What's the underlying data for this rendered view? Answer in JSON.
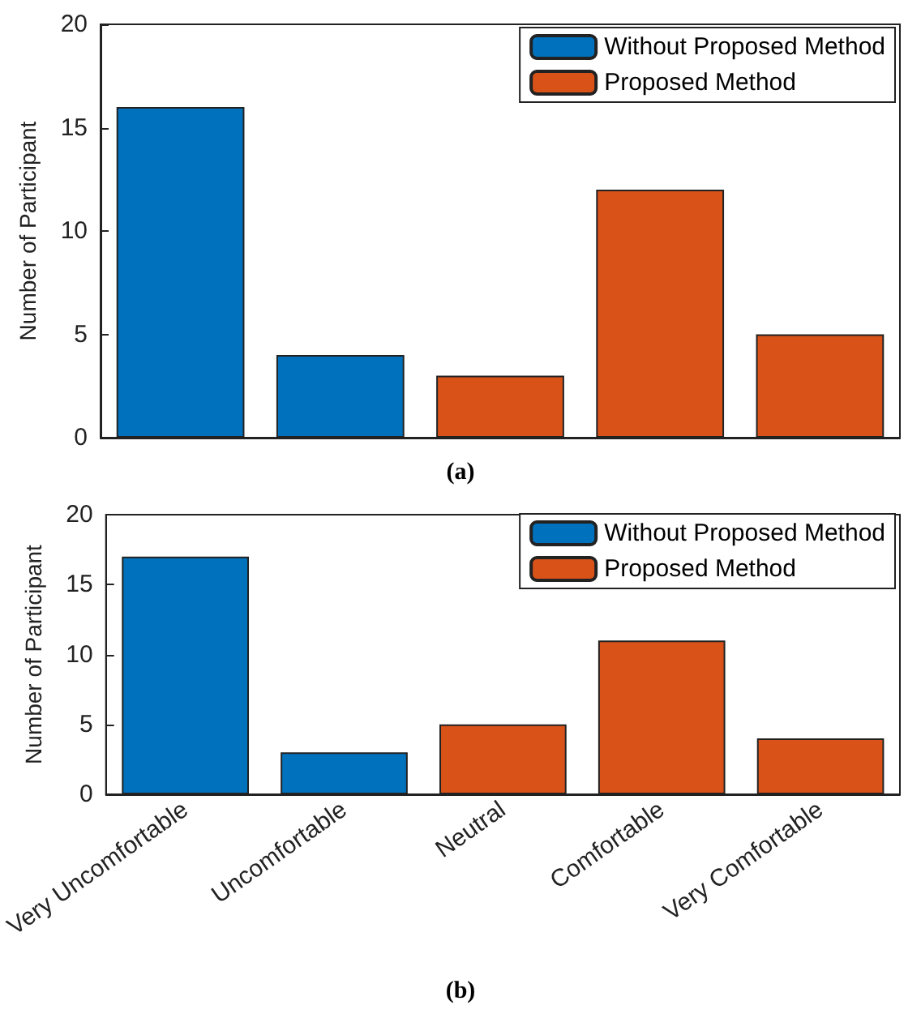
{
  "chart_data": [
    {
      "type": "bar",
      "title": "(a)",
      "ylabel": "Number of Participant",
      "categories": [
        null,
        null,
        null,
        null,
        null
      ],
      "tick_labels": "y",
      "series": [
        {
          "name": "Without Proposed Method",
          "color": "#0072bd",
          "values": [
            16,
            4,
            null,
            null,
            null
          ]
        },
        {
          "name": "Proposed Method",
          "color": "#d95319",
          "values": [
            null,
            null,
            3,
            12,
            5
          ]
        }
      ],
      "ylim": [
        0,
        20
      ],
      "yticks": [
        0,
        5,
        10,
        15,
        20
      ],
      "grid": false,
      "legend": "top right"
    },
    {
      "type": "bar",
      "title": "(b)",
      "ylabel": "Number of Participant",
      "categories": [
        "Very Uncomfortable",
        "Uncomfortable",
        "Neutral",
        "Comfortable",
        "Very Comfortable"
      ],
      "series": [
        {
          "name": "Without Proposed Method",
          "color": "#0072bd",
          "values": [
            17,
            3,
            null,
            null,
            null
          ]
        },
        {
          "name": "Proposed Method",
          "color": "#d95319",
          "values": [
            null,
            null,
            5,
            11,
            4
          ]
        }
      ],
      "ylim": [
        0,
        20
      ],
      "yticks": [
        0,
        5,
        10,
        15,
        20
      ],
      "grid": false,
      "legend": "top right"
    }
  ]
}
